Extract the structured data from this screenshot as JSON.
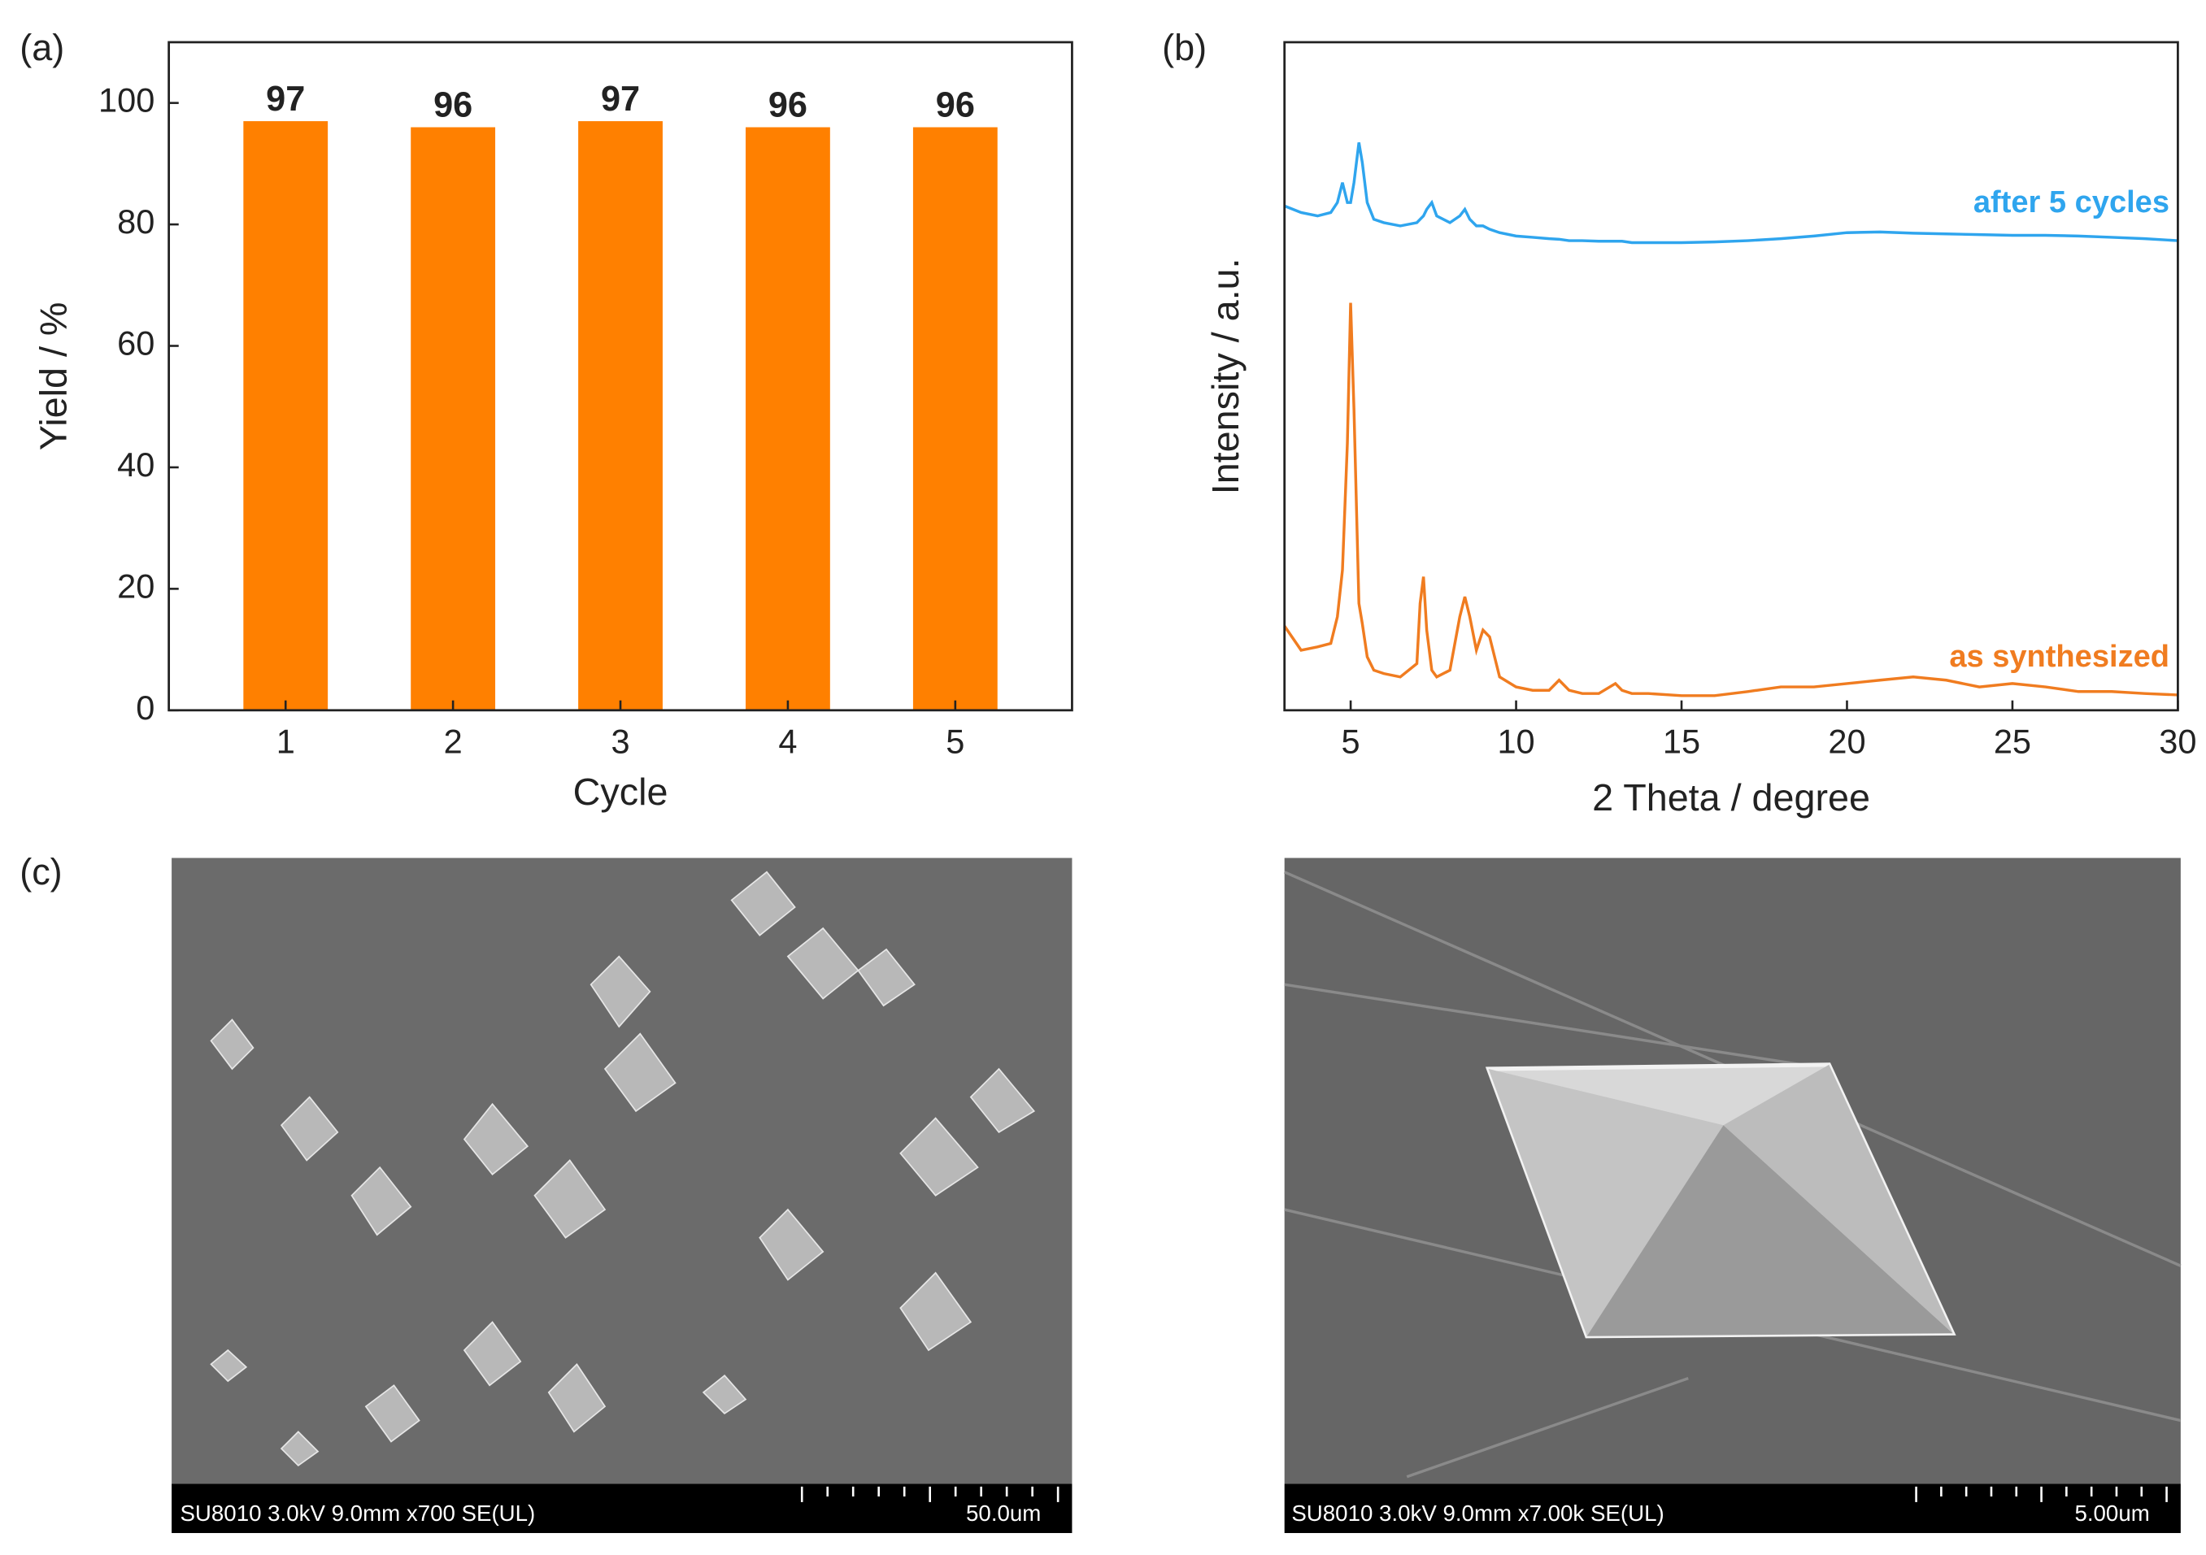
{
  "chart_data": [
    {
      "type": "bar",
      "panel_label": "(a)",
      "xlabel": "Cycle",
      "ylabel": "Yield / %",
      "categories": [
        "1",
        "2",
        "3",
        "4",
        "5"
      ],
      "values": [
        97,
        96,
        97,
        96,
        96
      ],
      "color": "#ff8000",
      "ylim": [
        0,
        110
      ],
      "yticks": [
        0,
        20,
        40,
        60,
        80,
        100
      ]
    },
    {
      "type": "line",
      "panel_label": "(b)",
      "xlabel": "2 Theta / degree",
      "ylabel": "Intensity / a.u.",
      "x": [
        3,
        3.5,
        4,
        4.4,
        4.6,
        4.75,
        4.9,
        5.0,
        5.1,
        5.25,
        5.35,
        5.5,
        5.7,
        6,
        6.5,
        7,
        7.1,
        7.2,
        7.3,
        7.45,
        7.6,
        8,
        8.3,
        8.45,
        8.6,
        8.8,
        9,
        9.2,
        9.5,
        10,
        10.5,
        11,
        11.3,
        11.6,
        12,
        12.5,
        13,
        13.2,
        13.5,
        14,
        15,
        16,
        17,
        18,
        19,
        20,
        21,
        22,
        23,
        24,
        25,
        26,
        27,
        28,
        29,
        30
      ],
      "series": [
        {
          "name": "after 5 cycles",
          "color": "#2fa5ee",
          "values": [
            75.5,
            74.5,
            74,
            74.5,
            76,
            79,
            76,
            76,
            79,
            85,
            82,
            76,
            73.5,
            73,
            72.5,
            73,
            73.5,
            74,
            75,
            76,
            74,
            73,
            74,
            75,
            73.5,
            72.5,
            72.5,
            72,
            71.5,
            71,
            70.8,
            70.6,
            70.5,
            70.3,
            70.3,
            70.2,
            70.2,
            70.2,
            70,
            70,
            70,
            70.1,
            70.3,
            70.6,
            71,
            71.5,
            71.6,
            71.4,
            71.3,
            71.2,
            71.1,
            71.1,
            71,
            70.8,
            70.6,
            70.3
          ]
        },
        {
          "name": "as synthesized",
          "color": "#f07c20",
          "values": [
            12.6,
            9,
            9.5,
            10,
            14,
            21,
            40,
            61,
            45,
            16,
            13,
            8,
            6,
            5.5,
            5,
            7,
            16,
            20,
            12,
            6,
            5,
            6,
            14,
            17,
            14,
            9,
            12,
            11,
            5,
            3.5,
            3,
            3,
            4.5,
            3,
            2.5,
            2.5,
            4,
            3,
            2.5,
            2.5,
            2.2,
            2.2,
            2.8,
            3.5,
            3.5,
            4,
            4.5,
            5,
            4.5,
            3.5,
            4,
            3.5,
            2.8,
            2.8,
            2.5,
            2.3
          ]
        }
      ],
      "xlim": [
        3,
        30
      ],
      "xticks": [
        5,
        10,
        15,
        20,
        25,
        30
      ],
      "ylim": [
        0,
        100
      ]
    }
  ],
  "panel_c": {
    "panel_label": "(c)",
    "images": [
      {
        "caption": "SU8010 3.0kV 9.0mm x700 SE(UL)",
        "scale": "50.0um"
      },
      {
        "caption": "SU8010 3.0kV 9.0mm x7.00k SE(UL)",
        "scale": "5.00um"
      }
    ]
  }
}
